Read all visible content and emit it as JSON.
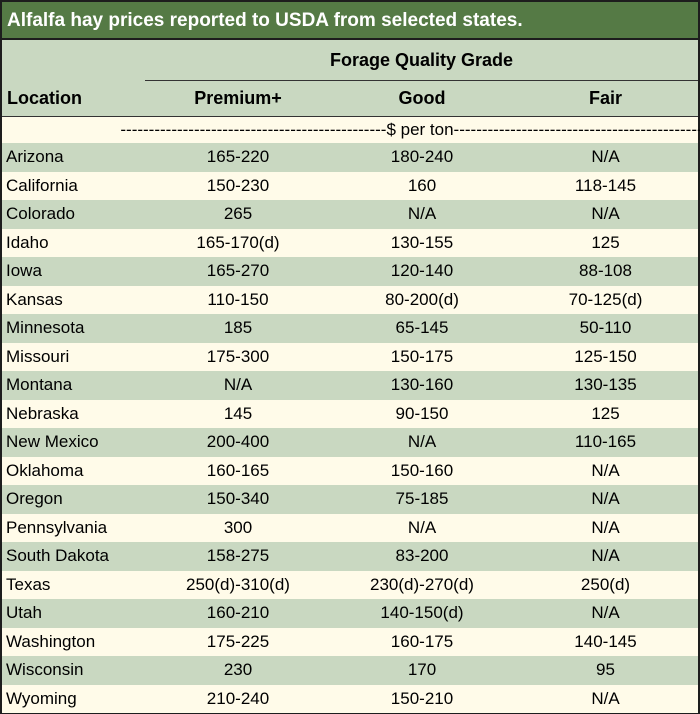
{
  "title": "Alfalfa hay prices reported to USDA from selected states.",
  "header": {
    "group": "Forage Quality Grade",
    "location": "Location",
    "columns": [
      "Premium+",
      "Good",
      "Fair"
    ],
    "unit_row": "-----------------------------------------------$ per ton-----------------------------------------------"
  },
  "rows": [
    {
      "location": "Arizona",
      "premium": "165-220",
      "good": "180-240",
      "fair": "N/A"
    },
    {
      "location": "California",
      "premium": "150-230",
      "good": "160",
      "fair": "118-145"
    },
    {
      "location": "Colorado",
      "premium": "265",
      "good": "N/A",
      "fair": "N/A"
    },
    {
      "location": "Idaho",
      "premium": "165-170(d)",
      "good": "130-155",
      "fair": "125"
    },
    {
      "location": "Iowa",
      "premium": "165-270",
      "good": "120-140",
      "fair": "88-108"
    },
    {
      "location": "Kansas",
      "premium": "110-150",
      "good": "80-200(d)",
      "fair": "70-125(d)"
    },
    {
      "location": "Minnesota",
      "premium": "185",
      "good": "65-145",
      "fair": "50-110"
    },
    {
      "location": "Missouri",
      "premium": "175-300",
      "good": "150-175",
      "fair": "125-150"
    },
    {
      "location": "Montana",
      "premium": "N/A",
      "good": "130-160",
      "fair": "130-135"
    },
    {
      "location": "Nebraska",
      "premium": "145",
      "good": "90-150",
      "fair": "125"
    },
    {
      "location": "New Mexico",
      "premium": "200-400",
      "good": "N/A",
      "fair": "110-165"
    },
    {
      "location": "Oklahoma",
      "premium": "160-165",
      "good": "150-160",
      "fair": "N/A"
    },
    {
      "location": "Oregon",
      "premium": "150-340",
      "good": "75-185",
      "fair": "N/A"
    },
    {
      "location": "Pennsylvania",
      "premium": "300",
      "good": "N/A",
      "fair": "N/A"
    },
    {
      "location": "South Dakota",
      "premium": "158-275",
      "good": "83-200",
      "fair": "N/A"
    },
    {
      "location": "Texas",
      "premium": "250(d)-310(d)",
      "good": "230(d)-270(d)",
      "fair": "250(d)"
    },
    {
      "location": "Utah",
      "premium": "160-210",
      "good": "140-150(d)",
      "fair": "N/A"
    },
    {
      "location": "Washington",
      "premium": "175-225",
      "good": "160-175",
      "fair": "140-145"
    },
    {
      "location": "Wisconsin",
      "premium": "230",
      "good": "170",
      "fair": "95"
    },
    {
      "location": "Wyoming",
      "premium": "210-240",
      "good": "150-210",
      "fair": "N/A"
    }
  ]
}
